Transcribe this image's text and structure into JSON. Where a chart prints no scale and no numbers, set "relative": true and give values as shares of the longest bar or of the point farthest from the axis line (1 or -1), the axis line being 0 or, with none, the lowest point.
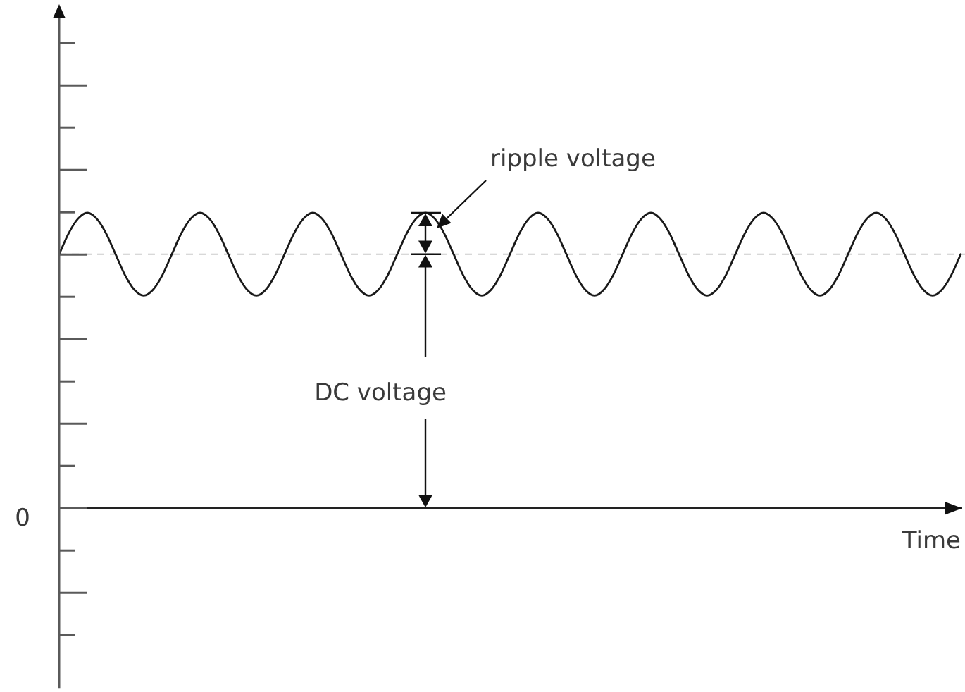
{
  "chart_data": {
    "type": "line",
    "xlabel": "Time",
    "relative": true,
    "categories": [
      null,
      null,
      null,
      null,
      null,
      null,
      null,
      null,
      null,
      null,
      null,
      null,
      null,
      null,
      null,
      null,
      null,
      null,
      null,
      null,
      null,
      null,
      null,
      null,
      null,
      null,
      null,
      null,
      null,
      null,
      null,
      null,
      null,
      null,
      null,
      null,
      null,
      null,
      null,
      null,
      null,
      null,
      null,
      null,
      null,
      null,
      null,
      null,
      null,
      null,
      null,
      null,
      null,
      null,
      null,
      null,
      null,
      null,
      null,
      null,
      null,
      null,
      null,
      null,
      null,
      null,
      null,
      null,
      null,
      null,
      null,
      null,
      null,
      null,
      null,
      null,
      null,
      null,
      null,
      null,
      null,
      null,
      null,
      null,
      null,
      null,
      null,
      null,
      null,
      null,
      null,
      null,
      null,
      null,
      null,
      null,
      null
    ],
    "series": [
      {
        "color": "#1a1a1a",
        "values": [
          0.86,
          0.93,
          0.98,
          1,
          0.98,
          0.93,
          0.86,
          0.79,
          0.74,
          0.72,
          0.74,
          0.79,
          0.86,
          0.93,
          0.98,
          1,
          0.98,
          0.93,
          0.86,
          0.79,
          0.74,
          0.72,
          0.74,
          0.79,
          0.86,
          0.93,
          0.98,
          1,
          0.98,
          0.93,
          0.86,
          0.79,
          0.74,
          0.72,
          0.74,
          0.79,
          0.86,
          0.93,
          0.98,
          1,
          0.98,
          0.93,
          0.86,
          0.79,
          0.74,
          0.72,
          0.74,
          0.79,
          0.86,
          0.93,
          0.98,
          1,
          0.98,
          0.93,
          0.86,
          0.79,
          0.74,
          0.72,
          0.74,
          0.79,
          0.86,
          0.93,
          0.98,
          1,
          0.98,
          0.93,
          0.86,
          0.79,
          0.74,
          0.72,
          0.74,
          0.79,
          0.86,
          0.93,
          0.98,
          1,
          0.98,
          0.93,
          0.86,
          0.79,
          0.74,
          0.72,
          0.74,
          0.79,
          0.86,
          0.93,
          0.98,
          1,
          0.98,
          0.93,
          0.86,
          0.79,
          0.74,
          0.72,
          0.74,
          0.79,
          0.86
        ]
      }
    ],
    "ref_lines": [
      {
        "axis": "y",
        "value": 0.86,
        "color": "#cccccc",
        "line_style": "dashed"
      }
    ],
    "annotations": [
      "ripple voltage",
      "DC voltage",
      "0"
    ]
  }
}
